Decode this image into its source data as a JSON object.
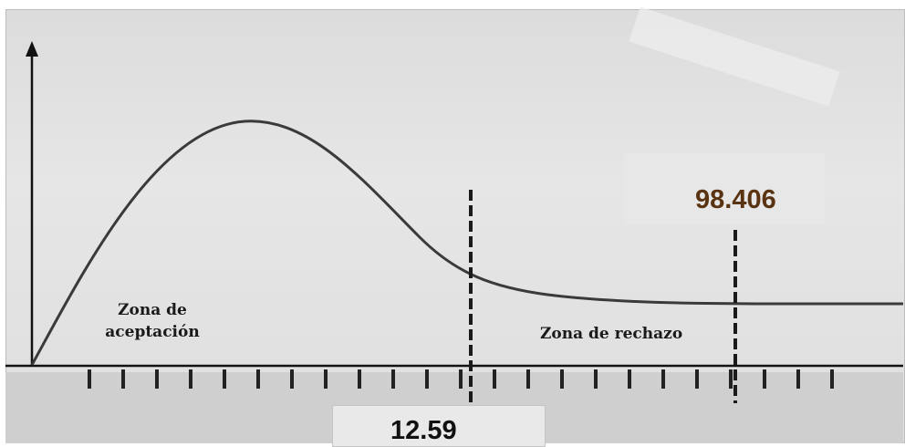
{
  "labels": {
    "acceptance_zone_line1": "Zona de",
    "acceptance_zone_line2": "aceptación",
    "rejection_zone": "Zona de rechazo",
    "critical_value": "12.59",
    "test_statistic": "98.406"
  },
  "colors": {
    "curve": "#3a3a3a",
    "axis": "#111111",
    "critical_line": "#1a1a1a",
    "statistic_text": "#5a3412"
  },
  "icons": [
    "y-axis-arrow-icon"
  ]
}
